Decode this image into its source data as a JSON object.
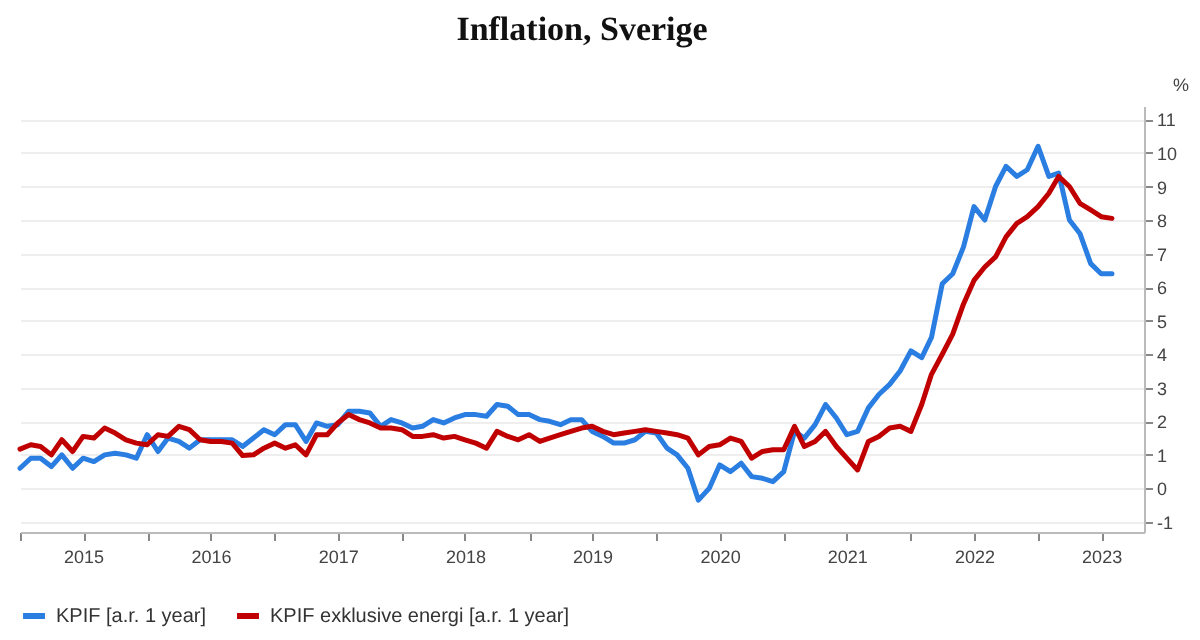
{
  "chart_data": {
    "type": "line",
    "title": "Inflation, Sverige",
    "ylabel": "%",
    "x": [
      "2015-01",
      "2015-02",
      "2015-03",
      "2015-04",
      "2015-05",
      "2015-06",
      "2015-07",
      "2015-08",
      "2015-09",
      "2015-10",
      "2015-11",
      "2015-12",
      "2016-01",
      "2016-02",
      "2016-03",
      "2016-04",
      "2016-05",
      "2016-06",
      "2016-07",
      "2016-08",
      "2016-09",
      "2016-10",
      "2016-11",
      "2016-12",
      "2017-01",
      "2017-02",
      "2017-03",
      "2017-04",
      "2017-05",
      "2017-06",
      "2017-07",
      "2017-08",
      "2017-09",
      "2017-10",
      "2017-11",
      "2017-12",
      "2018-01",
      "2018-02",
      "2018-03",
      "2018-04",
      "2018-05",
      "2018-06",
      "2018-07",
      "2018-08",
      "2018-09",
      "2018-10",
      "2018-11",
      "2018-12",
      "2019-01",
      "2019-02",
      "2019-03",
      "2019-04",
      "2019-05",
      "2019-06",
      "2019-07",
      "2019-08",
      "2019-09",
      "2019-10",
      "2019-11",
      "2019-12",
      "2020-01",
      "2020-02",
      "2020-03",
      "2020-04",
      "2020-05",
      "2020-06",
      "2020-07",
      "2020-08",
      "2020-09",
      "2020-10",
      "2020-11",
      "2020-12",
      "2021-01",
      "2021-02",
      "2021-03",
      "2021-04",
      "2021-05",
      "2021-06",
      "2021-07",
      "2021-08",
      "2021-09",
      "2021-10",
      "2021-11",
      "2021-12",
      "2022-01",
      "2022-02",
      "2022-03",
      "2022-04",
      "2022-05",
      "2022-06",
      "2022-07",
      "2022-08",
      "2022-09",
      "2022-10",
      "2022-11",
      "2022-12",
      "2023-01",
      "2023-02",
      "2023-03",
      "2023-04",
      "2023-05",
      "2023-06",
      "2023-07",
      "2023-08"
    ],
    "series": [
      {
        "name": "KPIF [a.r. 1 year]",
        "color": "#2a7de1",
        "values": [
          0.6,
          0.9,
          0.9,
          0.65,
          1.0,
          0.6,
          0.9,
          0.8,
          1.0,
          1.05,
          1.0,
          0.9,
          1.6,
          1.1,
          1.5,
          1.4,
          1.2,
          1.45,
          1.45,
          1.45,
          1.45,
          1.25,
          1.5,
          1.75,
          1.6,
          1.9,
          1.9,
          1.4,
          1.95,
          1.85,
          1.9,
          2.3,
          2.3,
          2.25,
          1.85,
          2.05,
          1.95,
          1.8,
          1.85,
          2.05,
          1.95,
          2.1,
          2.2,
          2.2,
          2.15,
          2.5,
          2.45,
          2.2,
          2.2,
          2.05,
          2.0,
          1.9,
          2.05,
          2.05,
          1.7,
          1.55,
          1.35,
          1.35,
          1.45,
          1.7,
          1.65,
          1.2,
          1.0,
          0.6,
          -0.35,
          0.0,
          0.7,
          0.5,
          0.75,
          0.35,
          0.3,
          0.2,
          0.5,
          1.7,
          1.5,
          1.9,
          2.5,
          2.1,
          1.6,
          1.7,
          2.4,
          2.8,
          3.1,
          3.5,
          4.1,
          3.9,
          4.5,
          6.1,
          6.4,
          7.2,
          8.4,
          8.0,
          9.0,
          9.6,
          9.3,
          9.5,
          10.2,
          9.3,
          9.4,
          8.0,
          7.6,
          6.7,
          6.4,
          6.4
        ]
      },
      {
        "name": "KPIF exklusive energi [a.r. 1 year]",
        "color": "#c00000",
        "values": [
          1.17,
          1.3,
          1.25,
          1.0,
          1.45,
          1.1,
          1.55,
          1.5,
          1.8,
          1.65,
          1.45,
          1.35,
          1.3,
          1.6,
          1.55,
          1.85,
          1.75,
          1.45,
          1.4,
          1.4,
          1.35,
          0.98,
          1.0,
          1.2,
          1.35,
          1.2,
          1.3,
          1.0,
          1.6,
          1.6,
          1.95,
          2.2,
          2.05,
          1.95,
          1.8,
          1.8,
          1.75,
          1.55,
          1.55,
          1.6,
          1.5,
          1.55,
          1.45,
          1.35,
          1.2,
          1.7,
          1.55,
          1.45,
          1.6,
          1.4,
          1.5,
          1.6,
          1.7,
          1.8,
          1.85,
          1.7,
          1.6,
          1.65,
          1.7,
          1.75,
          1.7,
          1.65,
          1.6,
          1.5,
          1.0,
          1.25,
          1.3,
          1.5,
          1.4,
          0.9,
          1.1,
          1.15,
          1.15,
          1.85,
          1.25,
          1.4,
          1.7,
          1.25,
          0.9,
          0.55,
          1.4,
          1.55,
          1.8,
          1.85,
          1.7,
          2.5,
          3.4,
          4.0,
          4.6,
          5.5,
          6.2,
          6.6,
          6.9,
          7.5,
          7.9,
          8.1,
          8.4,
          8.8,
          9.3,
          9.0,
          8.5,
          8.3,
          8.1,
          8.05
        ]
      }
    ],
    "xlim": [
      "2015-01",
      "2023-11"
    ],
    "xticks": [
      {
        "value": "2015-01",
        "label": null
      },
      {
        "value": "2015-07",
        "label": "2015"
      },
      {
        "value": "2016-01",
        "label": null
      },
      {
        "value": "2016-07",
        "label": "2016"
      },
      {
        "value": "2017-01",
        "label": null
      },
      {
        "value": "2017-07",
        "label": "2017"
      },
      {
        "value": "2018-01",
        "label": null
      },
      {
        "value": "2018-07",
        "label": "2018"
      },
      {
        "value": "2019-01",
        "label": null
      },
      {
        "value": "2019-07",
        "label": "2019"
      },
      {
        "value": "2020-01",
        "label": null
      },
      {
        "value": "2020-07",
        "label": "2020"
      },
      {
        "value": "2021-01",
        "label": null
      },
      {
        "value": "2021-07",
        "label": "2021"
      },
      {
        "value": "2022-01",
        "label": null
      },
      {
        "value": "2022-07",
        "label": "2022"
      },
      {
        "value": "2023-01",
        "label": null
      },
      {
        "value": "2023-07",
        "label": "2023"
      }
    ],
    "ylim": [
      -1.3,
      11.4
    ],
    "yticks": [
      -1,
      0,
      1,
      2,
      3,
      4,
      5,
      6,
      7,
      8,
      9,
      10,
      11
    ],
    "grid": "y",
    "legend": "bottom left",
    "line_style": "solid",
    "marker": "none"
  }
}
